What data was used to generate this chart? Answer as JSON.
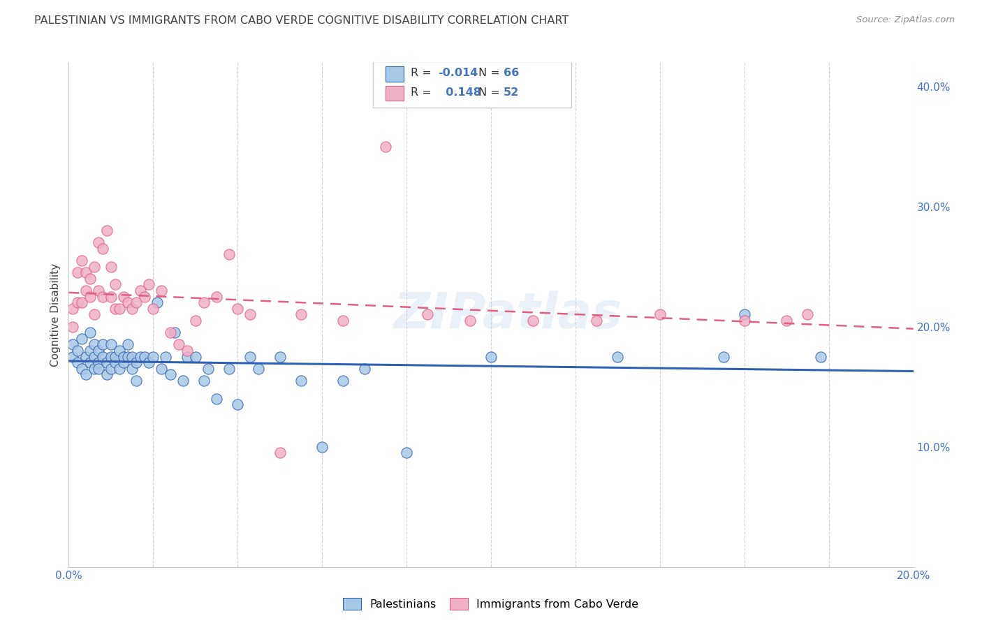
{
  "title": "PALESTINIAN VS IMMIGRANTS FROM CABO VERDE COGNITIVE DISABILITY CORRELATION CHART",
  "source": "Source: ZipAtlas.com",
  "ylabel": "Cognitive Disability",
  "xlim": [
    0.0,
    0.2
  ],
  "ylim": [
    0.0,
    0.42
  ],
  "yticks_right": [
    0.0,
    0.1,
    0.2,
    0.3,
    0.4
  ],
  "ytick_labels_right": [
    "",
    "10.0%",
    "20.0%",
    "30.0%",
    "40.0%"
  ],
  "xtick_positions": [
    0.0,
    0.02,
    0.04,
    0.06,
    0.08,
    0.1,
    0.12,
    0.14,
    0.16,
    0.18,
    0.2
  ],
  "xtick_labels": [
    "0.0%",
    "",
    "",
    "",
    "",
    "",
    "",
    "",
    "",
    "",
    "20.0%"
  ],
  "legend_label1": "Palestinians",
  "legend_label2": "Immigrants from Cabo Verde",
  "R1": "-0.014",
  "N1": "66",
  "R2": "0.148",
  "N2": "52",
  "color1": "#a8c8e8",
  "color2": "#f0b0c8",
  "trendline1_color": "#3060b0",
  "trendline2_color": "#e06080",
  "background_color": "#ffffff",
  "grid_color": "#c8c8c8",
  "title_color": "#404040",
  "source_color": "#909090",
  "axis_label_color": "#4472c4",
  "palestinians_x": [
    0.001,
    0.001,
    0.002,
    0.002,
    0.003,
    0.003,
    0.004,
    0.004,
    0.005,
    0.005,
    0.005,
    0.006,
    0.006,
    0.006,
    0.007,
    0.007,
    0.007,
    0.008,
    0.008,
    0.009,
    0.009,
    0.01,
    0.01,
    0.01,
    0.011,
    0.011,
    0.012,
    0.012,
    0.013,
    0.013,
    0.014,
    0.014,
    0.015,
    0.015,
    0.016,
    0.016,
    0.017,
    0.018,
    0.019,
    0.02,
    0.021,
    0.022,
    0.023,
    0.024,
    0.025,
    0.027,
    0.028,
    0.03,
    0.032,
    0.033,
    0.035,
    0.038,
    0.04,
    0.043,
    0.045,
    0.05,
    0.055,
    0.06,
    0.065,
    0.07,
    0.08,
    0.1,
    0.13,
    0.155,
    0.16,
    0.178
  ],
  "palestinians_y": [
    0.175,
    0.185,
    0.17,
    0.18,
    0.165,
    0.19,
    0.16,
    0.175,
    0.17,
    0.18,
    0.195,
    0.165,
    0.175,
    0.185,
    0.17,
    0.18,
    0.165,
    0.175,
    0.185,
    0.17,
    0.16,
    0.175,
    0.165,
    0.185,
    0.17,
    0.175,
    0.165,
    0.18,
    0.17,
    0.175,
    0.175,
    0.185,
    0.165,
    0.175,
    0.17,
    0.155,
    0.175,
    0.175,
    0.17,
    0.175,
    0.22,
    0.165,
    0.175,
    0.16,
    0.195,
    0.155,
    0.175,
    0.175,
    0.155,
    0.165,
    0.14,
    0.165,
    0.135,
    0.175,
    0.165,
    0.175,
    0.155,
    0.1,
    0.155,
    0.165,
    0.095,
    0.175,
    0.175,
    0.175,
    0.21,
    0.175
  ],
  "caboverde_x": [
    0.001,
    0.001,
    0.002,
    0.002,
    0.003,
    0.003,
    0.004,
    0.004,
    0.005,
    0.005,
    0.006,
    0.006,
    0.007,
    0.007,
    0.008,
    0.008,
    0.009,
    0.01,
    0.01,
    0.011,
    0.011,
    0.012,
    0.013,
    0.014,
    0.015,
    0.016,
    0.017,
    0.018,
    0.019,
    0.02,
    0.022,
    0.024,
    0.026,
    0.028,
    0.03,
    0.032,
    0.035,
    0.038,
    0.04,
    0.043,
    0.05,
    0.055,
    0.065,
    0.075,
    0.085,
    0.095,
    0.11,
    0.125,
    0.14,
    0.16,
    0.17,
    0.175
  ],
  "caboverde_y": [
    0.215,
    0.2,
    0.245,
    0.22,
    0.255,
    0.22,
    0.245,
    0.23,
    0.225,
    0.24,
    0.21,
    0.25,
    0.23,
    0.27,
    0.225,
    0.265,
    0.28,
    0.25,
    0.225,
    0.215,
    0.235,
    0.215,
    0.225,
    0.22,
    0.215,
    0.22,
    0.23,
    0.225,
    0.235,
    0.215,
    0.23,
    0.195,
    0.185,
    0.18,
    0.205,
    0.22,
    0.225,
    0.26,
    0.215,
    0.21,
    0.095,
    0.21,
    0.205,
    0.35,
    0.21,
    0.205,
    0.205,
    0.205,
    0.21,
    0.205,
    0.205,
    0.21
  ]
}
